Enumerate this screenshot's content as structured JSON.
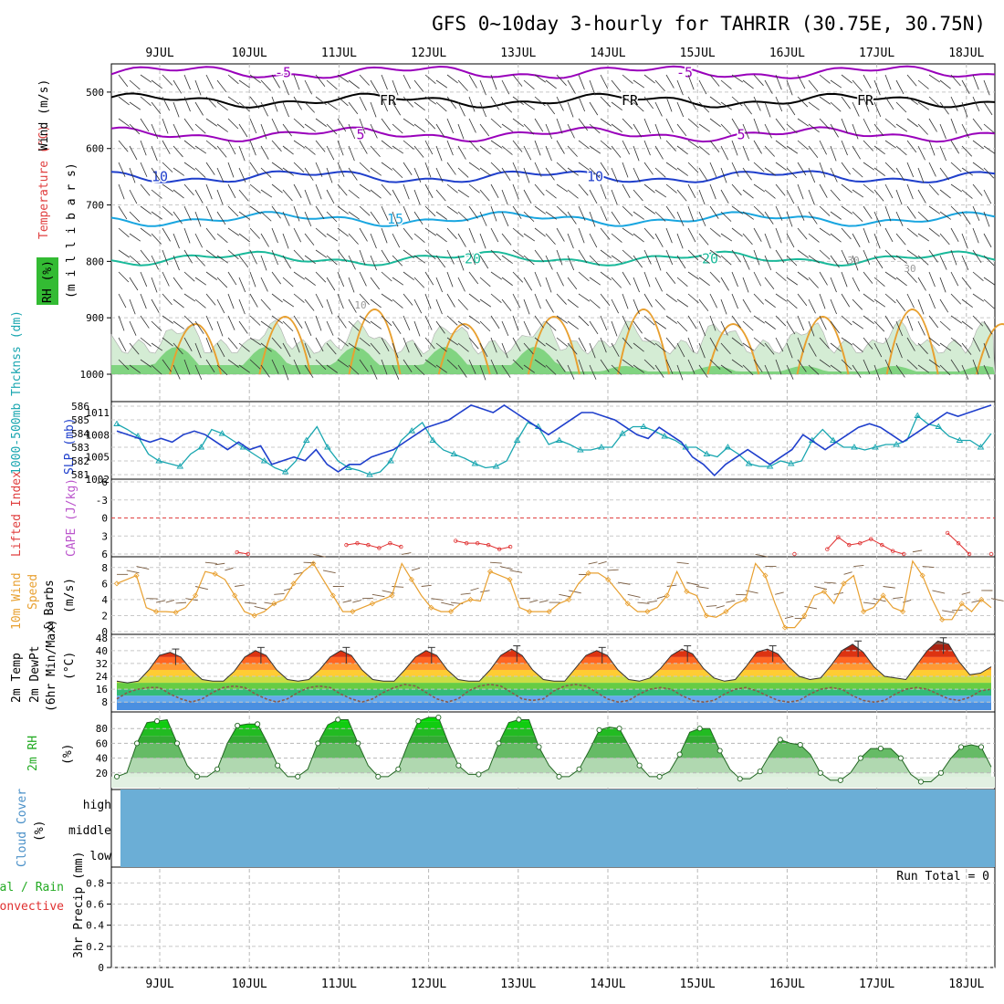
{
  "title": "GFS 0~10day 3-hourly for TAHRIR (30.75E, 30.75N)",
  "date_labels": [
    "9JUL",
    "10JUL",
    "11JUL",
    "12JUL",
    "13JUL",
    "14JUL",
    "15JUL",
    "16JUL",
    "17JUL",
    "18JUL"
  ],
  "colors": {
    "purple": "#9900bb",
    "blue": "#1f3fcc",
    "cyan": "#19a6e0",
    "teal": "#19b99a",
    "orange": "#e8a030",
    "red": "#e03030",
    "green": "#33bb33",
    "cloud": "#6baed6",
    "grid": "#aaaaaa"
  },
  "chart_data": [
    {
      "panel": "upper_air",
      "type": "contour",
      "labels": {
        "wind": "Wind (m/s)",
        "temperature": "Temperature (°C)",
        "rh": "RH (%)",
        "pressure_axis": "(m i l l i b a r s)"
      },
      "y_ticks": [
        "500",
        "600",
        "700",
        "800",
        "900",
        "1000"
      ],
      "y_range": [
        450,
        1000
      ],
      "isotherms": [
        {
          "label": "-5",
          "pressure": 465,
          "color": "purple"
        },
        {
          "label": "FR",
          "pressure": 515,
          "color": "black"
        },
        {
          "label": "5",
          "pressure": 575,
          "color": "purple"
        },
        {
          "label": "10",
          "pressure": 650,
          "color": "blue"
        },
        {
          "label": "15",
          "pressure": 725,
          "color": "cyan"
        },
        {
          "label": "20",
          "pressure": 795,
          "color": "teal"
        }
      ],
      "contour_labels": [
        "-5",
        "-5",
        "FR",
        "FR",
        "FR",
        "5",
        "5",
        "10",
        "10",
        "15",
        "20",
        "20",
        "30",
        "30",
        "10"
      ]
    },
    {
      "panel": "slp_thickness",
      "type": "line",
      "labels": {
        "slp": "SLP (mb)",
        "thickness": "1000-500mb Thcknss (dm)"
      },
      "thickness_ticks": [
        "586",
        "585",
        "584",
        "583",
        "582",
        "581"
      ],
      "slp_ticks": [
        "1011",
        "1008",
        "1005",
        "1002"
      ],
      "series": [
        {
          "name": "SLP (mb)",
          "values": [
            1008.5,
            1008,
            1007.5,
            1007,
            1007.5,
            1007,
            1008,
            1008.5,
            1008,
            1007,
            1006,
            1007,
            1006,
            1006.5,
            1004,
            1004.5,
            1005,
            1004.5,
            1006,
            1004,
            1003,
            1004,
            1004,
            1005,
            1005.5,
            1006,
            1007,
            1008,
            1009,
            1009.5,
            1010,
            1011,
            1012,
            1011.5,
            1011,
            1012,
            1011,
            1010,
            1009,
            1008,
            1009,
            1010,
            1011,
            1011,
            1010.5,
            1010,
            1009,
            1008,
            1007.5,
            1009,
            1008,
            1007,
            1005,
            1004,
            1002.5,
            1004,
            1005,
            1006,
            1005,
            1004,
            1005,
            1006,
            1008,
            1007,
            1006,
            1007,
            1008,
            1009,
            1009.5,
            1009,
            1008,
            1007,
            1008,
            1009,
            1010,
            1011,
            1010.5,
            1011,
            1011.5,
            1012
          ]
        },
        {
          "name": "1000-500mb Thcknss (dm)",
          "values": [
            584.7,
            584.3,
            583.8,
            582.5,
            582,
            581.8,
            581.6,
            582.5,
            583,
            584.3,
            584,
            583.5,
            583,
            582.5,
            582,
            581.5,
            581.2,
            582,
            583.5,
            584.5,
            583,
            582,
            581.5,
            581.3,
            581,
            581.2,
            582,
            583.5,
            584.2,
            584.8,
            583.5,
            582.8,
            582.5,
            582.2,
            581.8,
            581.5,
            581.6,
            582,
            583.5,
            584.8,
            584.5,
            583.2,
            583.5,
            583.2,
            582.8,
            582.8,
            583,
            583,
            584,
            584.5,
            584.5,
            584.2,
            583.8,
            583.5,
            583,
            583,
            582.5,
            582.3,
            583,
            582.5,
            581.8,
            581.6,
            581.6,
            582,
            581.8,
            582,
            583.5,
            584.3,
            583.5,
            583,
            583,
            582.8,
            583,
            583.2,
            583.2,
            583.5,
            585.3,
            584.7,
            584.5,
            583.8,
            583.5,
            583.5,
            583,
            584
          ]
        }
      ]
    },
    {
      "panel": "cape_li",
      "type": "line",
      "labels": {
        "li": "Lifted Index",
        "cape": "CAPE (J/kg)"
      },
      "y_ticks": [
        "-6",
        "-3",
        "0",
        "3",
        "6"
      ],
      "ylim": [
        -6,
        6
      ],
      "series": [
        {
          "name": "Lifted Index",
          "values": [
            6.5,
            6.5,
            6.5,
            6.5,
            6.5,
            6.5,
            6.5,
            6.5,
            6.5,
            6.5,
            6.5,
            5.7,
            6,
            6.5,
            6.5,
            6.5,
            6.5,
            6.5,
            6.5,
            6.5,
            6.5,
            4.5,
            4.2,
            4.5,
            5,
            4.2,
            4.8,
            6.2,
            6.5,
            6.5,
            6.5,
            3.8,
            4.2,
            4.2,
            4.5,
            5.2,
            4.8,
            6.2,
            6.5,
            6.5,
            6.5,
            6.5,
            6.5,
            6.5,
            6.5,
            6.5,
            6.5,
            6.5,
            6.5,
            6.5,
            6.5,
            6.5,
            6.5,
            6.5,
            6.5,
            6.5,
            6.5,
            6.5,
            6.5,
            6.5,
            6.5,
            6.5,
            6,
            6.5,
            6.5,
            5.2,
            3.2,
            4.5,
            4.2,
            3.5,
            4.5,
            5.5,
            6,
            6.5,
            6.5,
            6.5,
            2.5,
            4.2,
            6,
            6.2,
            6
          ]
        }
      ]
    },
    {
      "panel": "wind10m",
      "type": "line",
      "labels": {
        "main": "10m Wind",
        "speed": "Speed",
        "barbs": "& Barbs",
        "unit": "(m/s)"
      },
      "y_ticks": [
        "0",
        "2",
        "4",
        "6",
        "8"
      ],
      "ylim": [
        0,
        9
      ],
      "series": [
        {
          "name": "Speed",
          "values": [
            6,
            6.5,
            7,
            3,
            2.5,
            2.5,
            2.4,
            3,
            4.5,
            7.5,
            7.2,
            6.5,
            4.5,
            2.5,
            2,
            2.5,
            3.5,
            4,
            6,
            7.5,
            8.5,
            6.5,
            4.5,
            2.5,
            2.5,
            3,
            3.5,
            4,
            4.5,
            8.5,
            6.5,
            4.5,
            3,
            2.5,
            2.5,
            3.5,
            4,
            3.8,
            7.5,
            7,
            6.5,
            3,
            2.5,
            2.5,
            2.5,
            3.5,
            4,
            6,
            7.3,
            7.3,
            6.5,
            5,
            3.5,
            2.5,
            2.5,
            3,
            4.5,
            7.5,
            5,
            4.5,
            2,
            1.8,
            2.5,
            3.5,
            4,
            8.5,
            7,
            3.5,
            0.5,
            0.5,
            2,
            4.5,
            5,
            3.5,
            6,
            7,
            2.5,
            3,
            4.5,
            3,
            2.5,
            8.8,
            7,
            4,
            1.5,
            1.5,
            3.5,
            2.5,
            4,
            3
          ]
        }
      ]
    },
    {
      "panel": "temp2m",
      "type": "area",
      "labels": {
        "temp": "2m Temp",
        "dewpt": "2m DewPt",
        "minmax": "(6hr Min/Max)",
        "unit": "(°C)"
      },
      "y_ticks": [
        "8",
        "16",
        "24",
        "32",
        "40",
        "48"
      ],
      "ylim": [
        3,
        49
      ],
      "series": [
        {
          "name": "2m Temp",
          "values": [
            21,
            20,
            21,
            28,
            37,
            39,
            36,
            28,
            22,
            21,
            21,
            27,
            36,
            40,
            37,
            28,
            22,
            21,
            22,
            28,
            36,
            40,
            37,
            28,
            22,
            21,
            21,
            28,
            36,
            40,
            37,
            28,
            22,
            21,
            21,
            28,
            37,
            41,
            37,
            28,
            22,
            21,
            21,
            29,
            37,
            40,
            37,
            28,
            22,
            21,
            23,
            29,
            37,
            41,
            38,
            29,
            23,
            21,
            22,
            30,
            39,
            41,
            38,
            30,
            24,
            22,
            23,
            31,
            40,
            44,
            39,
            30,
            24,
            23,
            22,
            31,
            40,
            46,
            44,
            33,
            25,
            26,
            30
          ]
        },
        {
          "name": "2m DewPt",
          "values": [
            10,
            14,
            16,
            17,
            17,
            13,
            10,
            8,
            10,
            14,
            17,
            18,
            17,
            13,
            10,
            8,
            10,
            14,
            17,
            18,
            17,
            13,
            10,
            8,
            10,
            14,
            17,
            19,
            18,
            14,
            10,
            8,
            10,
            15,
            18,
            19,
            18,
            14,
            10,
            9,
            10,
            15,
            18,
            19,
            18,
            14,
            10,
            8,
            9,
            13,
            16,
            17,
            16,
            12,
            9,
            8,
            9,
            13,
            16,
            17,
            15,
            12,
            9,
            8,
            9,
            13,
            16,
            17,
            16,
            12,
            9,
            8,
            9,
            13,
            16,
            17,
            16,
            13,
            10,
            9,
            11,
            15,
            16
          ]
        }
      ]
    },
    {
      "panel": "rh2m",
      "type": "area",
      "labels": {
        "rh": "2m RH",
        "unit": "(%)"
      },
      "y_ticks": [
        "20",
        "40",
        "60",
        "80"
      ],
      "ylim": [
        0,
        100
      ],
      "series": [
        {
          "name": "2m RH",
          "values": [
            15,
            20,
            60,
            88,
            90,
            92,
            60,
            30,
            15,
            15,
            25,
            60,
            84,
            86,
            86,
            60,
            30,
            15,
            15,
            25,
            60,
            85,
            92,
            92,
            60,
            30,
            15,
            15,
            25,
            60,
            90,
            95,
            95,
            60,
            30,
            18,
            18,
            25,
            60,
            88,
            92,
            92,
            55,
            30,
            15,
            15,
            25,
            50,
            78,
            82,
            80,
            55,
            30,
            15,
            15,
            22,
            45,
            75,
            80,
            80,
            50,
            25,
            12,
            12,
            22,
            45,
            65,
            60,
            58,
            45,
            20,
            10,
            10,
            20,
            40,
            53,
            53,
            53,
            40,
            18,
            8,
            8,
            20,
            40,
            55,
            58,
            55,
            28
          ]
        }
      ]
    },
    {
      "panel": "cloud_cover",
      "type": "area",
      "labels": {
        "main": "Cloud Cover",
        "unit": "(%)",
        "high": "high",
        "middle": "middle",
        "low": "low"
      }
    },
    {
      "panel": "precip",
      "type": "bar",
      "labels": {
        "total_rain": "Total / Rain",
        "convective": "Convective",
        "unit": "3hr Precip (mm)",
        "run_total": "Run Total = 0"
      },
      "y_ticks": [
        "0",
        "0.2",
        "0.4",
        "0.6",
        "0.8"
      ],
      "ylim": [
        0,
        0.95
      ],
      "values": []
    }
  ]
}
